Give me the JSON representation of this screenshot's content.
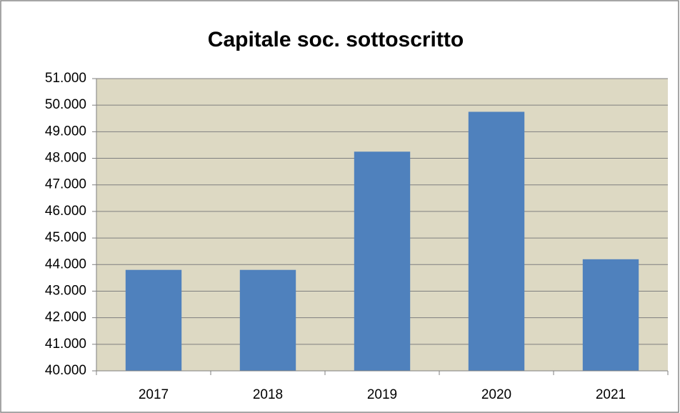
{
  "chart_data": {
    "type": "bar",
    "title": "Capitale soc. sottoscritto",
    "categories": [
      "2017",
      "2018",
      "2019",
      "2020",
      "2021"
    ],
    "values": [
      43800,
      43800,
      48250,
      49750,
      44200
    ],
    "color": "#4f81bd",
    "ylim": [
      40000,
      51000
    ],
    "yticks": [
      {
        "value": 40000,
        "label": "40.000"
      },
      {
        "value": 41000,
        "label": "41.000"
      },
      {
        "value": 42000,
        "label": "42.000"
      },
      {
        "value": 43000,
        "label": "43.000"
      },
      {
        "value": 44000,
        "label": "44.000"
      },
      {
        "value": 45000,
        "label": "45.000"
      },
      {
        "value": 46000,
        "label": "46.000"
      },
      {
        "value": 47000,
        "label": "47.000"
      },
      {
        "value": 48000,
        "label": "48.000"
      },
      {
        "value": 49000,
        "label": "49.000"
      },
      {
        "value": 50000,
        "label": "50.000"
      },
      {
        "value": 51000,
        "label": "51.000"
      }
    ],
    "grid": true
  }
}
